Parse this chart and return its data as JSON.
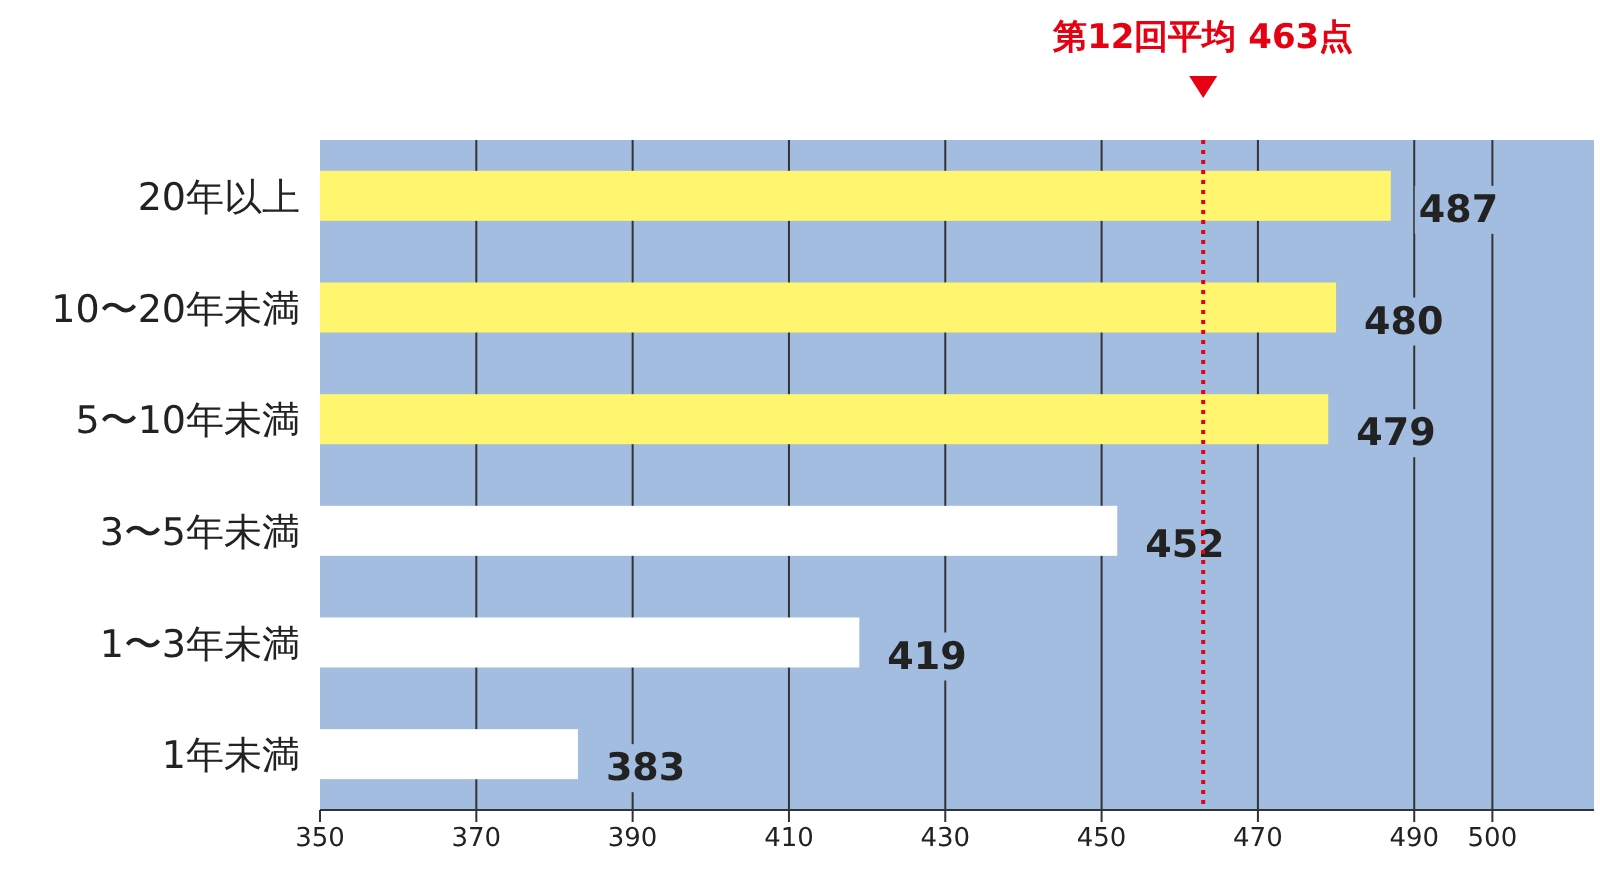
{
  "chart_data": {
    "type": "bar",
    "orientation": "horizontal",
    "categories": [
      "20年以上",
      "10〜20年未満",
      "5〜10年未満",
      "3〜5年未満",
      "1〜3年未満",
      "1年未満"
    ],
    "values": [
      487,
      480,
      479,
      452,
      419,
      383
    ],
    "colors": [
      "#fff56e",
      "#fff56e",
      "#fff56e",
      "#ffffff",
      "#ffffff",
      "#ffffff"
    ],
    "xlim": [
      350,
      513
    ],
    "xticks": [
      350,
      370,
      390,
      410,
      430,
      450,
      470,
      490,
      500
    ],
    "grid": "x",
    "data_labels": true,
    "ref_lines": [
      {
        "axis": "x",
        "value": 463,
        "label": "第12回平均 463点",
        "color": "#e60012",
        "line_style": "dotted"
      }
    ]
  }
}
